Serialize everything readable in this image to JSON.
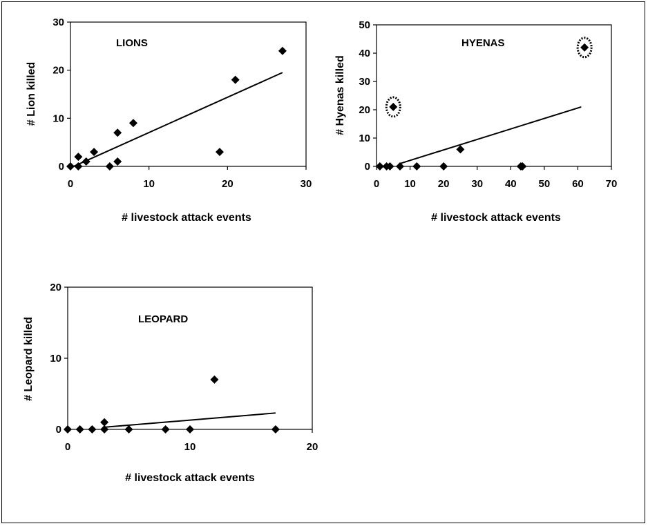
{
  "chart_data": [
    {
      "type": "scatter",
      "title": "LIONS",
      "xlabel": "# livestock attack events",
      "ylabel": "# Lion killed",
      "xlim": [
        0,
        30
      ],
      "ylim": [
        0,
        30
      ],
      "xticks": [
        0,
        10,
        20,
        30
      ],
      "yticks": [
        0,
        10,
        20,
        30
      ],
      "grid": false,
      "marker": "diamond",
      "points": [
        {
          "x": 0,
          "y": 0
        },
        {
          "x": 1,
          "y": 0
        },
        {
          "x": 1,
          "y": 2
        },
        {
          "x": 2,
          "y": 1
        },
        {
          "x": 3,
          "y": 3
        },
        {
          "x": 5,
          "y": 0
        },
        {
          "x": 6,
          "y": 1
        },
        {
          "x": 6,
          "y": 7
        },
        {
          "x": 8,
          "y": 9
        },
        {
          "x": 19,
          "y": 3
        },
        {
          "x": 21,
          "y": 18
        },
        {
          "x": 27,
          "y": 24
        }
      ],
      "trendline": {
        "x": [
          0,
          27
        ],
        "y": [
          -0.3,
          19.5
        ]
      }
    },
    {
      "type": "scatter",
      "title": "HYENAS",
      "xlabel": "# livestock attack events",
      "ylabel": "# Hyenas killed",
      "xlim": [
        0,
        70
      ],
      "ylim": [
        0,
        50
      ],
      "xticks": [
        0,
        10,
        20,
        30,
        40,
        50,
        60,
        70
      ],
      "yticks": [
        0,
        10,
        20,
        30,
        40,
        50
      ],
      "grid": false,
      "marker": "diamond",
      "points": [
        {
          "x": 1,
          "y": 0
        },
        {
          "x": 3,
          "y": 0
        },
        {
          "x": 4,
          "y": 0
        },
        {
          "x": 5,
          "y": 21
        },
        {
          "x": 7,
          "y": 0
        },
        {
          "x": 12,
          "y": 0
        },
        {
          "x": 20,
          "y": 0
        },
        {
          "x": 25,
          "y": 6
        },
        {
          "x": 43,
          "y": 0
        },
        {
          "x": 43.5,
          "y": 0
        },
        {
          "x": 62,
          "y": 42
        }
      ],
      "highlighted": [
        {
          "x": 5,
          "y": 21
        },
        {
          "x": 62,
          "y": 42
        }
      ],
      "trendline": {
        "x": [
          7,
          61
        ],
        "y": [
          1,
          21
        ]
      }
    },
    {
      "type": "scatter",
      "title": "LEOPARD",
      "xlabel": "# livestock attack events",
      "ylabel": "# Leopard killed",
      "xlim": [
        0,
        20
      ],
      "ylim": [
        0,
        20
      ],
      "xticks": [
        0,
        10,
        20
      ],
      "yticks": [
        0,
        10,
        20
      ],
      "grid": false,
      "marker": "diamond",
      "points": [
        {
          "x": 0,
          "y": 0
        },
        {
          "x": 1,
          "y": 0
        },
        {
          "x": 2,
          "y": 0
        },
        {
          "x": 3,
          "y": 0
        },
        {
          "x": 3,
          "y": 1
        },
        {
          "x": 5,
          "y": 0
        },
        {
          "x": 8,
          "y": 0
        },
        {
          "x": 10,
          "y": 0
        },
        {
          "x": 12,
          "y": 7
        },
        {
          "x": 17,
          "y": 0
        }
      ],
      "trendline": {
        "x": [
          3,
          17
        ],
        "y": [
          0.3,
          2.3
        ]
      }
    }
  ],
  "colors": {
    "ink": "#000000",
    "background": "#ffffff"
  }
}
